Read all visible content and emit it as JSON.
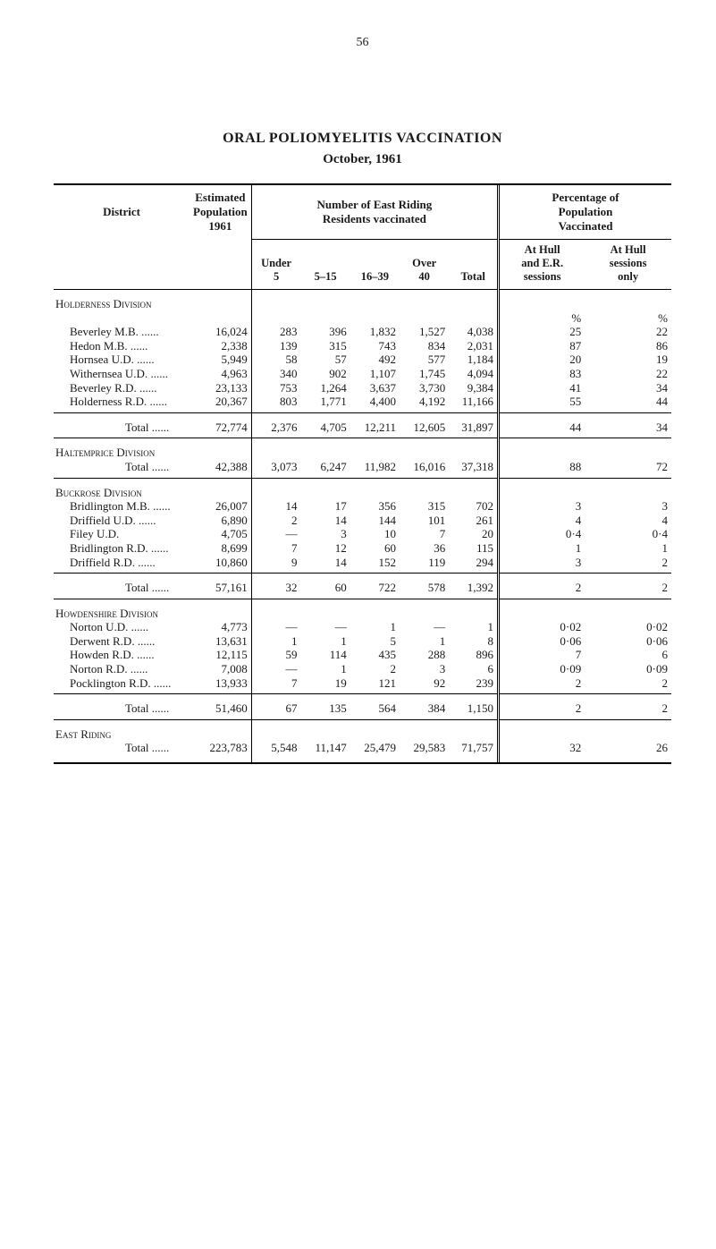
{
  "page_number": "56",
  "title": "ORAL POLIOMYELITIS VACCINATION",
  "subtitle": "October, 1961",
  "headers": {
    "district": "District",
    "est_pop": "Estimated\nPopulation\n1961",
    "number_vacc": "Number of East Riding\nResidents vaccinated",
    "pct_pop": "Percentage of\nPopulation\nVaccinated",
    "under5": "Under\n5",
    "r5_15": "5–15",
    "r16_39": "16–39",
    "over40": "Over\n40",
    "total": "Total",
    "at_hull_er": "At Hull\nand E.R.\nsessions",
    "at_hull_only": "At Hull\nsessions\nonly"
  },
  "pct_sym": "%",
  "sections": [
    {
      "heading": "Holderness Division",
      "rows": [
        {
          "label": "Beverley M.B.",
          "dots": true,
          "pop": "16,024",
          "u5": "283",
          "r515": "396",
          "r1639": "1,832",
          "o40": "1,527",
          "tot": "4,038",
          "hull_er": "25",
          "hull_only": "22"
        },
        {
          "label": "Hedon M.B.",
          "dots": true,
          "pop": "2,338",
          "u5": "139",
          "r515": "315",
          "r1639": "743",
          "o40": "834",
          "tot": "2,031",
          "hull_er": "87",
          "hull_only": "86"
        },
        {
          "label": "Hornsea U.D.",
          "dots": true,
          "pop": "5,949",
          "u5": "58",
          "r515": "57",
          "r1639": "492",
          "o40": "577",
          "tot": "1,184",
          "hull_er": "20",
          "hull_only": "19"
        },
        {
          "label": "Withernsea U.D.",
          "dots": true,
          "pop": "4,963",
          "u5": "340",
          "r515": "902",
          "r1639": "1,107",
          "o40": "1,745",
          "tot": "4,094",
          "hull_er": "83",
          "hull_only": "22"
        },
        {
          "label": "Beverley R.D.",
          "dots": true,
          "pop": "23,133",
          "u5": "753",
          "r515": "1,264",
          "r1639": "3,637",
          "o40": "3,730",
          "tot": "9,384",
          "hull_er": "41",
          "hull_only": "34"
        },
        {
          "label": "Holderness R.D.",
          "dots": true,
          "pop": "20,367",
          "u5": "803",
          "r515": "1,771",
          "r1639": "4,400",
          "o40": "4,192",
          "tot": "11,166",
          "hull_er": "55",
          "hull_only": "44"
        }
      ],
      "total": {
        "label": "Total",
        "pop": "72,774",
        "u5": "2,376",
        "r515": "4,705",
        "r1639": "12,211",
        "o40": "12,605",
        "tot": "31,897",
        "hull_er": "44",
        "hull_only": "34"
      }
    },
    {
      "heading": "Haltemprice Division",
      "rows": [],
      "total": {
        "label": "Total",
        "pop": "42,388",
        "u5": "3,073",
        "r515": "6,247",
        "r1639": "11,982",
        "o40": "16,016",
        "tot": "37,318",
        "hull_er": "88",
        "hull_only": "72"
      }
    },
    {
      "heading": "Buckrose Division",
      "rows": [
        {
          "label": "Bridlington M.B.",
          "dots": true,
          "pop": "26,007",
          "u5": "14",
          "r515": "17",
          "r1639": "356",
          "o40": "315",
          "tot": "702",
          "hull_er": "3",
          "hull_only": "3"
        },
        {
          "label": "Driffield U.D.",
          "dots": true,
          "pop": "6,890",
          "u5": "2",
          "r515": "14",
          "r1639": "144",
          "o40": "101",
          "tot": "261",
          "hull_er": "4",
          "hull_only": "4"
        },
        {
          "label": "Filey U.D.",
          "dots": false,
          "pop": "4,705",
          "u5": "—",
          "r515": "3",
          "r1639": "10",
          "o40": "7",
          "tot": "20",
          "hull_er": "0·4",
          "hull_only": "0·4"
        },
        {
          "label": "Bridlington R.D.",
          "dots": true,
          "pop": "8,699",
          "u5": "7",
          "r515": "12",
          "r1639": "60",
          "o40": "36",
          "tot": "115",
          "hull_er": "1",
          "hull_only": "1"
        },
        {
          "label": "Driffield R.D.",
          "dots": true,
          "pop": "10,860",
          "u5": "9",
          "r515": "14",
          "r1639": "152",
          "o40": "119",
          "tot": "294",
          "hull_er": "3",
          "hull_only": "2"
        }
      ],
      "total": {
        "label": "Total",
        "pop": "57,161",
        "u5": "32",
        "r515": "60",
        "r1639": "722",
        "o40": "578",
        "tot": "1,392",
        "hull_er": "2",
        "hull_only": "2"
      }
    },
    {
      "heading": "Howdenshire Division",
      "rows": [
        {
          "label": "Norton U.D.",
          "dots": true,
          "pop": "4,773",
          "u5": "—",
          "r515": "—",
          "r1639": "1",
          "o40": "—",
          "tot": "1",
          "hull_er": "0·02",
          "hull_only": "0·02"
        },
        {
          "label": "Derwent R.D.",
          "dots": true,
          "pop": "13,631",
          "u5": "1",
          "r515": "1",
          "r1639": "5",
          "o40": "1",
          "tot": "8",
          "hull_er": "0·06",
          "hull_only": "0·06"
        },
        {
          "label": "Howden R.D.",
          "dots": true,
          "pop": "12,115",
          "u5": "59",
          "r515": "114",
          "r1639": "435",
          "o40": "288",
          "tot": "896",
          "hull_er": "7",
          "hull_only": "6"
        },
        {
          "label": "Norton R.D.",
          "dots": true,
          "pop": "7,008",
          "u5": "—",
          "r515": "1",
          "r1639": "2",
          "o40": "3",
          "tot": "6",
          "hull_er": "0·09",
          "hull_only": "0·09"
        },
        {
          "label": "Pocklington R.D.",
          "dots": true,
          "pop": "13,933",
          "u5": "7",
          "r515": "19",
          "r1639": "121",
          "o40": "92",
          "tot": "239",
          "hull_er": "2",
          "hull_only": "2"
        }
      ],
      "total": {
        "label": "Total",
        "pop": "51,460",
        "u5": "67",
        "r515": "135",
        "r1639": "564",
        "o40": "384",
        "tot": "1,150",
        "hull_er": "2",
        "hull_only": "2"
      }
    }
  ],
  "grand": {
    "heading": "East Riding",
    "label": "Total",
    "pop": "223,783",
    "u5": "5,548",
    "r515": "11,147",
    "r1639": "25,479",
    "o40": "29,583",
    "tot": "71,757",
    "hull_er": "32",
    "hull_only": "26"
  },
  "col_widths_pct": [
    22,
    10,
    8,
    8,
    8,
    8,
    8,
    14,
    14
  ]
}
